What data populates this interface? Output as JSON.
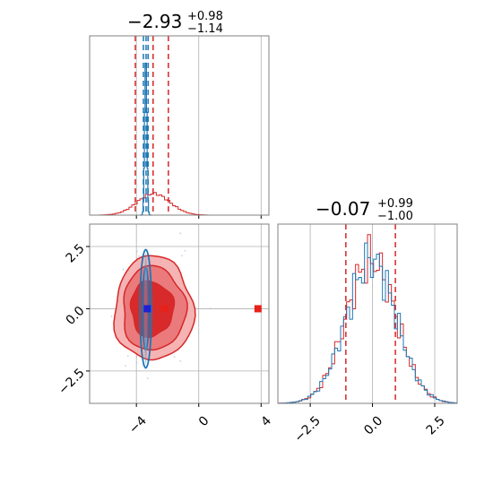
{
  "chart_data": [
    {
      "type": "histogram",
      "panel": "marginal-param-1",
      "title_value": "−2.93",
      "title_upper": "+0.98",
      "title_lower": "−1.14",
      "quantile_lines": [
        -4.07,
        -2.93,
        -1.95
      ],
      "narrow_quantile_lines": [
        -3.55,
        -3.38,
        -3.25
      ],
      "xlim": [
        -7,
        4.5
      ],
      "x_ticks": [
        -4,
        0,
        4
      ],
      "series": [
        {
          "color": "#d62728",
          "description": "wide distribution",
          "bins": [
            -6.0,
            -5.5,
            -5.0,
            -4.5,
            -4.0,
            -3.5,
            -3.0,
            -2.5,
            -2.0,
            -1.5,
            -1.0,
            -0.5,
            0.0
          ],
          "counts": [
            0.02,
            0.04,
            0.07,
            0.1,
            0.12,
            0.13,
            0.12,
            0.1,
            0.07,
            0.04,
            0.02,
            0.01
          ]
        }
      ]
    },
    {
      "type": "histogram",
      "panel": "marginal-param-2",
      "title_value": "−0.07",
      "title_upper": "+0.99",
      "title_lower": "−1.00",
      "quantile_lines": [
        -1.07,
        0.92
      ],
      "xlim": [
        -3.8,
        3.4
      ],
      "x_ticks": [
        "−2.5",
        "0.0",
        "2.5"
      ],
      "x_tick_values": [
        -2.5,
        0.0,
        2.5
      ],
      "series": [
        {
          "color": "#d62728"
        },
        {
          "color": "#1f77b4"
        }
      ]
    },
    {
      "type": "contour",
      "panel": "joint",
      "xlim": [
        -7,
        4.5
      ],
      "ylim": [
        -3.8,
        3.4
      ],
      "x_ticks": [
        "−4",
        "0",
        "4"
      ],
      "x_tick_values": [
        -4,
        0,
        4
      ],
      "y_ticks": [
        "−2.5",
        "0.0",
        "2.5"
      ],
      "y_tick_values": [
        -2.5,
        0.0,
        2.5
      ],
      "markers": [
        {
          "x": -3.3,
          "y": 0.0,
          "color": "#1f1fd6"
        },
        {
          "x": -2.2,
          "y": 0.0,
          "color": "#e8201a"
        },
        {
          "x": 3.8,
          "y": 0.0,
          "color": "#e8201a"
        }
      ]
    }
  ],
  "colors": {
    "red": "#d62728",
    "blue": "#1f77b4",
    "grid": "#b0b0b0"
  }
}
